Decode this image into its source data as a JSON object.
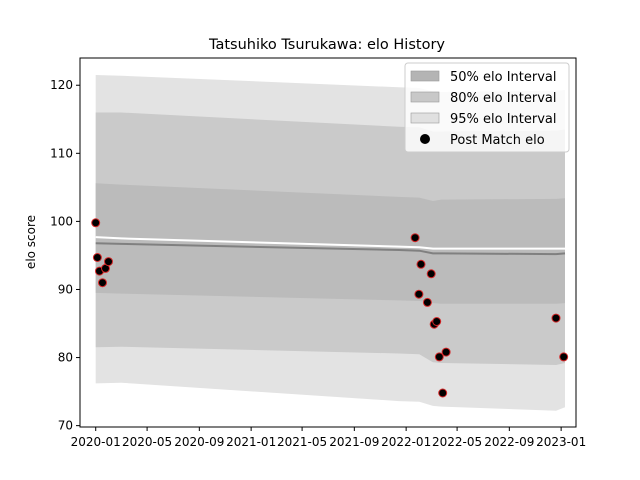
{
  "chart_data": {
    "type": "line",
    "title": "Tatsuhiko Tsurukawa: elo History",
    "xlabel": "",
    "ylabel": "elo score",
    "x_ticks": [
      "2020-01",
      "2020-05",
      "2020-09",
      "2021-01",
      "2021-05",
      "2021-09",
      "2022-01",
      "2022-05",
      "2022-09",
      "2023-01"
    ],
    "y_ticks": [
      70,
      80,
      90,
      100,
      110,
      120
    ],
    "xlim": [
      "2019-11-25",
      "2023-02-05"
    ],
    "ylim": [
      69.8,
      124.0
    ],
    "grid": false,
    "legend_position": "top-right",
    "legend": [
      {
        "label": "50% elo Interval",
        "color": "#b4b4b4"
      },
      {
        "label": "80% elo Interval",
        "color": "#c8c8c8"
      },
      {
        "label": "95% elo Interval",
        "color": "#e0e0e0"
      },
      {
        "label": "Post Match elo",
        "color": "#000000"
      }
    ],
    "colors": {
      "band95": "#e3e3e3",
      "band80": "#cacaca",
      "band50": "#bbbbbb",
      "mean_line": "#808080",
      "white_line": "#ffffff",
      "marker_fill": "#000000",
      "marker_edge": "#d62728"
    },
    "bands": {
      "x": [
        "2020-01-01",
        "2020-03-01",
        "2021-12-15",
        "2022-02-01",
        "2022-03-05",
        "2022-03-25",
        "2022-12-20",
        "2023-01-10"
      ],
      "mean": [
        96.8,
        96.7,
        95.8,
        95.7,
        95.3,
        95.3,
        95.2,
        95.3
      ],
      "white": [
        97.7,
        97.5,
        96.3,
        96.2,
        96.0,
        96.0,
        96.0,
        96.0
      ],
      "p50_upper": [
        105.6,
        105.4,
        103.6,
        103.5,
        103.0,
        103.2,
        103.3,
        103.4
      ],
      "p50_lower": [
        89.5,
        89.4,
        88.4,
        88.3,
        88.0,
        87.9,
        87.9,
        88.0
      ],
      "p80_upper": [
        116.0,
        116.0,
        113.9,
        113.8,
        113.2,
        113.2,
        113.3,
        113.5
      ],
      "p80_lower": [
        81.5,
        81.6,
        80.6,
        80.5,
        79.3,
        79.2,
        78.9,
        79.2
      ],
      "p95_upper": [
        121.5,
        121.4,
        119.7,
        119.6,
        119.1,
        119.0,
        119.2,
        119.3
      ],
      "p95_lower": [
        76.2,
        76.3,
        73.6,
        73.5,
        72.9,
        72.8,
        72.2,
        72.7
      ]
    },
    "series": [
      {
        "name": "Post Match elo",
        "x": [
          "2020-01-01",
          "2020-01-05",
          "2020-01-10",
          "2020-01-17",
          "2020-01-24",
          "2020-01-31",
          "2022-01-22",
          "2022-01-31",
          "2022-02-05",
          "2022-02-20",
          "2022-03-01",
          "2022-03-08",
          "2022-03-14",
          "2022-03-20",
          "2022-03-28",
          "2022-04-05",
          "2022-12-20",
          "2023-01-07"
        ],
        "y": [
          99.8,
          94.7,
          92.7,
          91.0,
          93.1,
          94.1,
          97.6,
          89.3,
          93.7,
          88.1,
          92.3,
          84.9,
          85.3,
          80.1,
          74.8,
          80.8,
          85.8,
          80.1
        ]
      }
    ]
  }
}
